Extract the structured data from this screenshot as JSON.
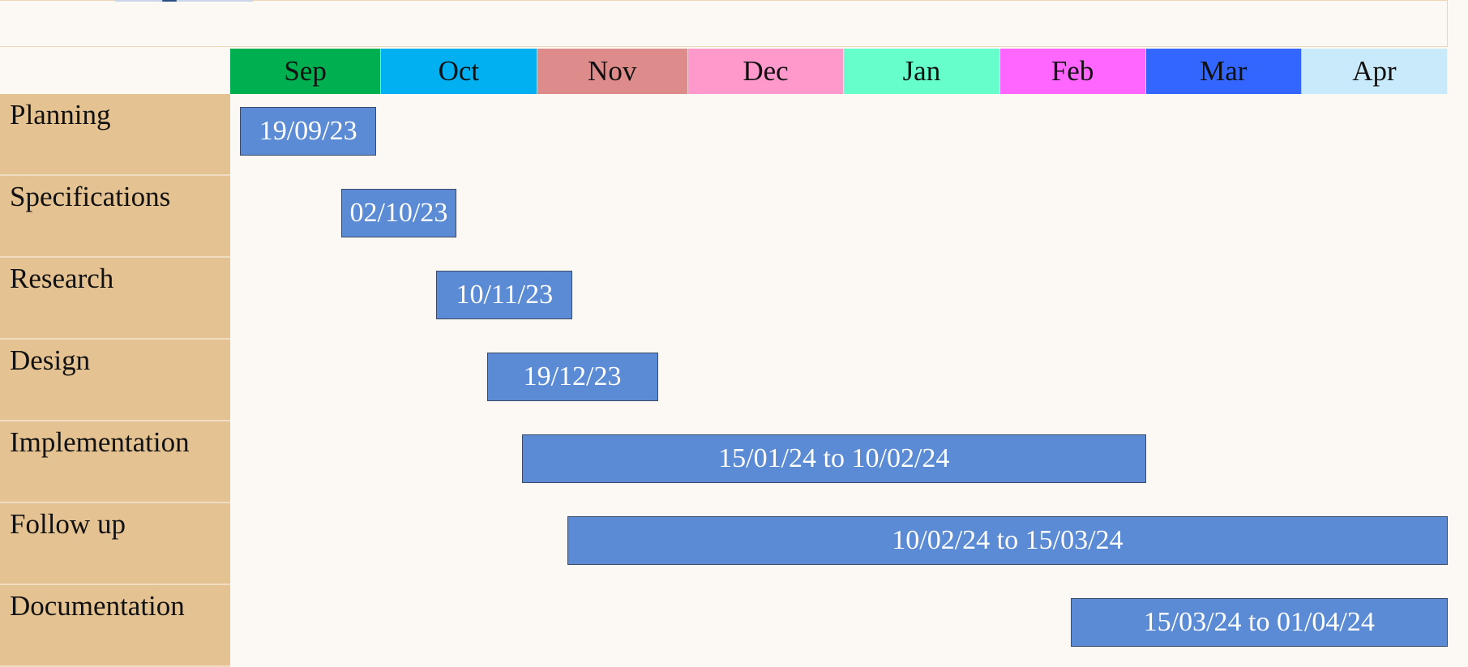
{
  "chart_data": {
    "type": "gantt",
    "months": [
      {
        "label": "Sep",
        "color": "#00b050"
      },
      {
        "label": "Oct",
        "color": "#00b0f0"
      },
      {
        "label": "Nov",
        "color": "#de8b8b"
      },
      {
        "label": "Dec",
        "color": "#ff99cc"
      },
      {
        "label": "Jan",
        "color": "#66ffcc"
      },
      {
        "label": "Feb",
        "color": "#ff66ff"
      },
      {
        "label": "Mar",
        "color": "#3366ff"
      },
      {
        "label": "Apr",
        "color": "#c9eafa"
      }
    ],
    "tasks": [
      {
        "name": "Planning",
        "label": "19/09/23",
        "start": "2023-09-03",
        "end": "2023-09-30"
      },
      {
        "name": "Specifications",
        "label": "02/10/23",
        "start": "2023-09-23",
        "end": "2023-10-16"
      },
      {
        "name": "Research",
        "label": "10/11/23",
        "start": "2023-10-12",
        "end": "2023-11-08"
      },
      {
        "name": "Design",
        "label": "19/12/23",
        "start": "2023-10-22",
        "end": "2023-11-25"
      },
      {
        "name": "Implementation",
        "label": "15/01/24 to 10/02/24",
        "start": "2023-10-29",
        "end": "2024-03-01"
      },
      {
        "name": "Follow up",
        "label": "10/02/24 to 15/03/24",
        "start": "2023-11-07",
        "end": "2024-04-30"
      },
      {
        "name": "Documentation",
        "label": "15/03/24 to 01/04/24",
        "start": "2024-02-15",
        "end": "2024-04-30"
      }
    ],
    "bar_color": "#5b8bd4",
    "label_color": "#e5c291"
  }
}
